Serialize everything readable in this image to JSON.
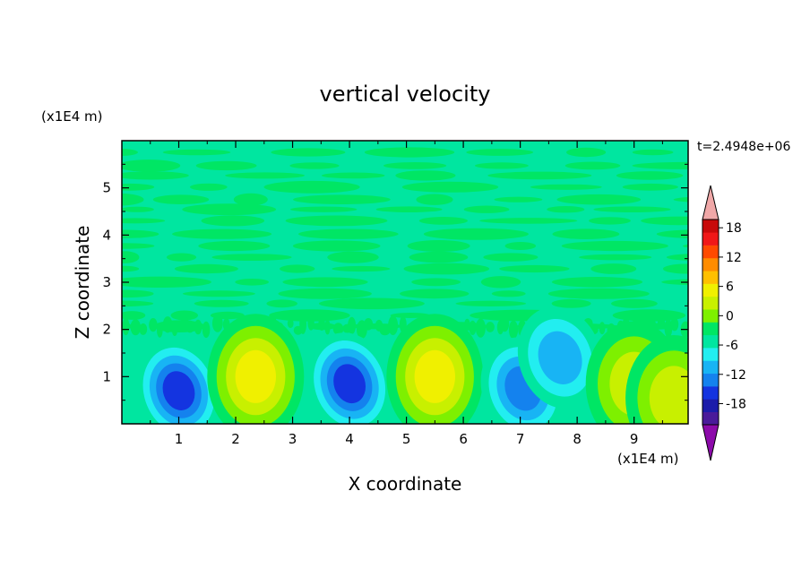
{
  "chart_data": {
    "type": "heatmap",
    "title": "vertical velocity",
    "xlabel": "X coordinate",
    "ylabel": "Z coordinate",
    "x_unit": "(x1E4 m)",
    "y_unit": "(x1E4 m)",
    "time_label": "t=2.4948e+06",
    "xlim": [
      0,
      9.95
    ],
    "ylim": [
      0,
      6.0
    ],
    "x_ticks": [
      1,
      2,
      3,
      4,
      5,
      6,
      7,
      8,
      9
    ],
    "y_ticks": [
      1,
      2,
      3,
      4,
      5
    ],
    "x_tick_labels": [
      "1",
      "2",
      "3",
      "4",
      "5",
      "6",
      "7",
      "8",
      "9"
    ],
    "y_tick_labels": [
      "1",
      "2",
      "3",
      "4",
      "5"
    ],
    "grid": false,
    "legend": "right",
    "colorbar": {
      "levels": [
        -21,
        -18,
        -15,
        -12,
        -9,
        -6,
        -3,
        0,
        3,
        6,
        9,
        12,
        15,
        18,
        21
      ],
      "tick_values": [
        18,
        12,
        6,
        0,
        -6,
        -12,
        -18
      ],
      "tick_labels": [
        "18",
        "12",
        "6",
        "0",
        "-6",
        "-12",
        "-18"
      ],
      "colors": [
        "#4a1a9a",
        "#1c1caa",
        "#1434e0",
        "#1482ee",
        "#18b4f4",
        "#22eef0",
        "#00e6a0",
        "#00e664",
        "#7ef000",
        "#c8f000",
        "#f0f000",
        "#ffc000",
        "#ff8c00",
        "#ff4a00",
        "#f01818",
        "#c80a0a"
      ],
      "under_color": "#8c0aaa",
      "over_color": "#f0a8a8"
    },
    "features": [
      {
        "x": 1.0,
        "z": 0.7,
        "value": -12
      },
      {
        "x": 2.35,
        "z": 1.0,
        "value": 9
      },
      {
        "x": 4.0,
        "z": 0.85,
        "value": -12
      },
      {
        "x": 5.5,
        "z": 1.0,
        "value": 9
      },
      {
        "x": 7.05,
        "z": 0.75,
        "value": -9
      },
      {
        "x": 7.7,
        "z": 1.4,
        "value": -6
      },
      {
        "x": 9.0,
        "z": 0.85,
        "value": 6
      },
      {
        "x": 9.7,
        "z": 0.55,
        "value": 6
      }
    ]
  }
}
